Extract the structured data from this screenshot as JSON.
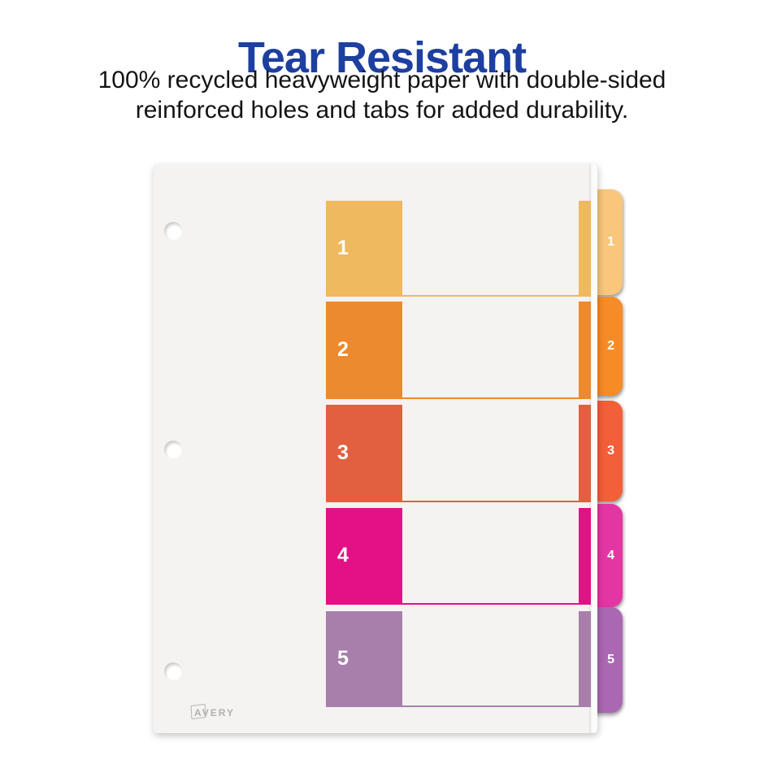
{
  "header": {
    "title": "Tear Resistant",
    "title_color": "#1d3fa0",
    "description_line1": "100% recycled heavyweight paper with double-sided",
    "description_line2": "reinforced holes and tabs for added durability."
  },
  "divider_sheet": {
    "brand": "AVERY",
    "sheet_color": "#f4f3f1",
    "rows": [
      {
        "label": "1",
        "color": "#efb95f",
        "tab_color": "#f9c67c"
      },
      {
        "label": "2",
        "color": "#ec8a2f",
        "tab_color": "#f78b26"
      },
      {
        "label": "3",
        "color": "#e2603f",
        "tab_color": "#f25f38"
      },
      {
        "label": "4",
        "color": "#e31185",
        "tab_color": "#e436a3"
      },
      {
        "label": "5",
        "color": "#a87fab",
        "tab_color": "#ab68b2"
      }
    ]
  }
}
